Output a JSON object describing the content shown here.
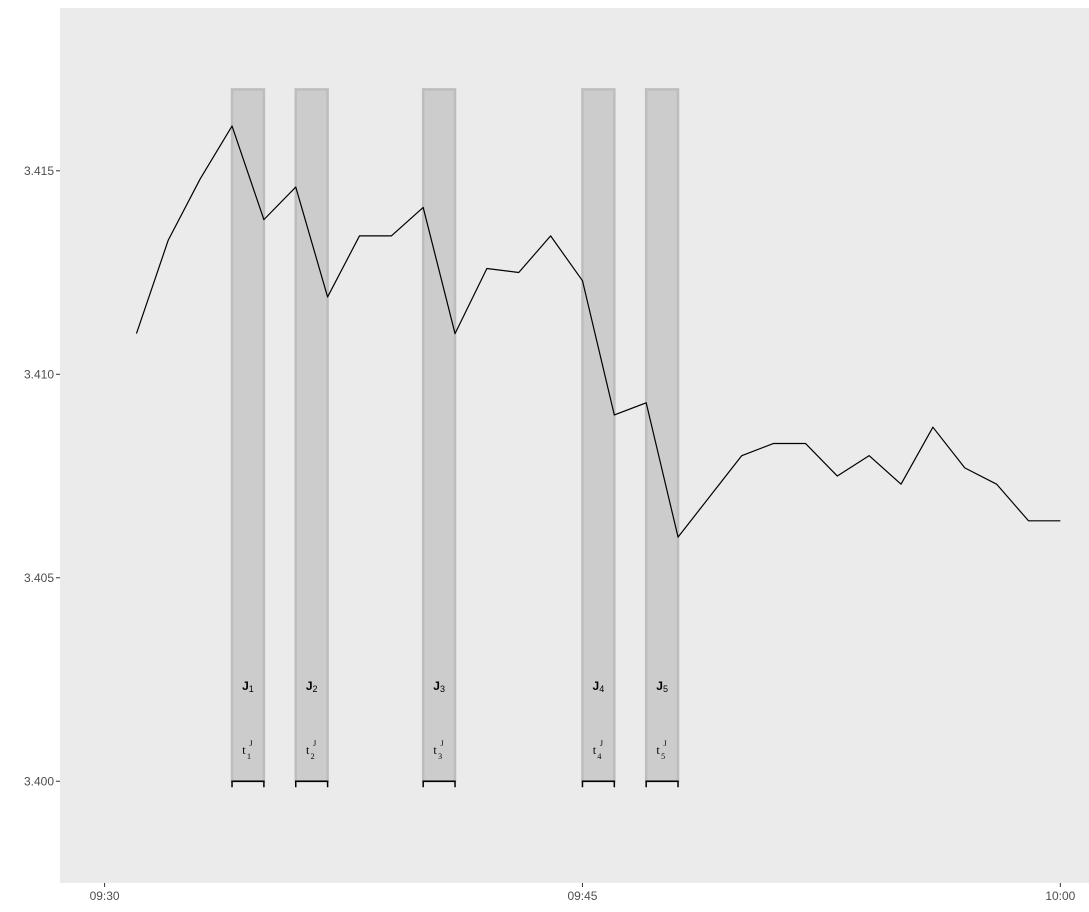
{
  "chart_data": {
    "type": "line",
    "title": "",
    "xlabel": "",
    "ylabel": "",
    "x_ticks": [
      "09:30",
      "09:45",
      "10:00"
    ],
    "y_ticks": [
      "3.400",
      "3.405",
      "3.410",
      "3.415"
    ],
    "xlim_minutes_after_0930": [
      -1.4,
      30.9
    ],
    "ylim": [
      3.3975,
      3.419
    ],
    "grid": false,
    "panel_background": "#ebebeb",
    "line_color": "#000000",
    "series": [
      {
        "x": [
          "09:31",
          "09:32",
          "09:33",
          "09:34",
          "09:35",
          "09:36",
          "09:37",
          "09:38",
          "09:39",
          "09:40",
          "09:41",
          "09:42",
          "09:43",
          "09:44",
          "09:45",
          "09:46",
          "09:47",
          "09:48",
          "09:49",
          "09:50",
          "09:51",
          "09:52",
          "09:53",
          "09:54",
          "09:55",
          "09:56",
          "09:57",
          "09:58",
          "09:59",
          "10:00"
        ],
        "values": [
          3.411,
          3.4133,
          3.4148,
          3.4161,
          3.4138,
          3.4146,
          3.4119,
          3.4134,
          3.4134,
          3.4141,
          3.411,
          3.4126,
          3.4125,
          3.4134,
          3.4123,
          3.409,
          3.4093,
          3.406,
          3.407,
          3.408,
          3.4083,
          3.4083,
          3.4075,
          3.408,
          3.4073,
          3.4087,
          3.4077,
          3.4073,
          3.4064,
          3.4064
        ]
      }
    ],
    "jump_intervals": [
      {
        "label": "J",
        "sub": "1",
        "t_label": "t",
        "t_sup": "J",
        "t_sub": "1",
        "start": "09:34",
        "end": "09:35"
      },
      {
        "label": "J",
        "sub": "2",
        "t_label": "t",
        "t_sup": "J",
        "t_sub": "2",
        "start": "09:36",
        "end": "09:37"
      },
      {
        "label": "J",
        "sub": "3",
        "t_label": "t",
        "t_sup": "J",
        "t_sub": "3",
        "start": "09:40",
        "end": "09:41"
      },
      {
        "label": "J",
        "sub": "4",
        "t_label": "t",
        "t_sup": "J",
        "t_sub": "4",
        "start": "09:45",
        "end": "09:46"
      },
      {
        "label": "J",
        "sub": "5",
        "t_label": "t",
        "t_sup": "J",
        "t_sub": "5",
        "start": "09:47",
        "end": "09:48"
      }
    ],
    "jump_rect_top": 3.417,
    "jump_rect_bottom": 3.4,
    "jump_fill": "#cccccc",
    "jump_stroke": "#bdbdbd"
  }
}
